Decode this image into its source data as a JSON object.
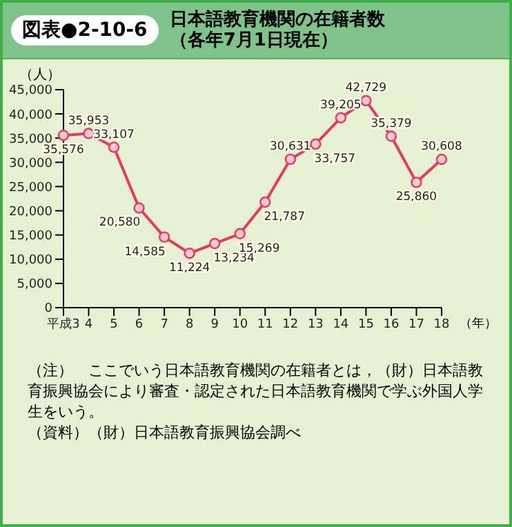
{
  "chart_data": {
    "type": "line",
    "subtitle": "図表●2-10-6",
    "title": "日本語教育機関の在籍者数（各年7月1日現在）",
    "ylabel": "（人）",
    "xlabel": "（年）",
    "categories": [
      "平成3",
      "4",
      "5",
      "6",
      "7",
      "8",
      "9",
      "10",
      "11",
      "12",
      "13",
      "14",
      "15",
      "16",
      "17",
      "18"
    ],
    "series": [
      {
        "color": "#e8385e",
        "values": [
          35576,
          35953,
          33107,
          20580,
          14585,
          11224,
          13234,
          15269,
          21787,
          30631,
          33757,
          39205,
          42729,
          35379,
          25860,
          30608
        ],
        "value_labels": [
          "35,576",
          "35,953",
          "33,107",
          "20,580",
          "14,585",
          "11,224",
          "13,234",
          "15,269",
          "21,787",
          "30,631",
          "33,757",
          "39,205",
          "42,729",
          "35,379",
          "25,860",
          "30,608"
        ]
      }
    ],
    "ylim": [
      0,
      45000
    ],
    "yticks": [
      0,
      {
        "value": 5000,
        "label": "5,000"
      },
      {
        "value": 10000,
        "label": "10,000"
      },
      {
        "value": 15000,
        "label": "15,000"
      },
      {
        "value": 20000,
        "label": "20,000"
      },
      {
        "value": 25000,
        "label": "25,000"
      },
      {
        "value": 30000,
        "label": "30,000"
      },
      {
        "value": 35000,
        "label": "35,000"
      },
      {
        "value": 40000,
        "label": "40,000"
      },
      {
        "value": 45000,
        "label": "45,000"
      }
    ],
    "grid": false,
    "legend": false,
    "marker": "circle",
    "line_style": "solid",
    "annotations": [
      "（注）　ここでいう日本語教育機関の在籍者とは，（財）日本語教育振興協会により審査・認定された日本語教育機関で学ぶ外国人学生をいう。",
      "（資料）（財）日本語教育振興協会調べ"
    ]
  }
}
